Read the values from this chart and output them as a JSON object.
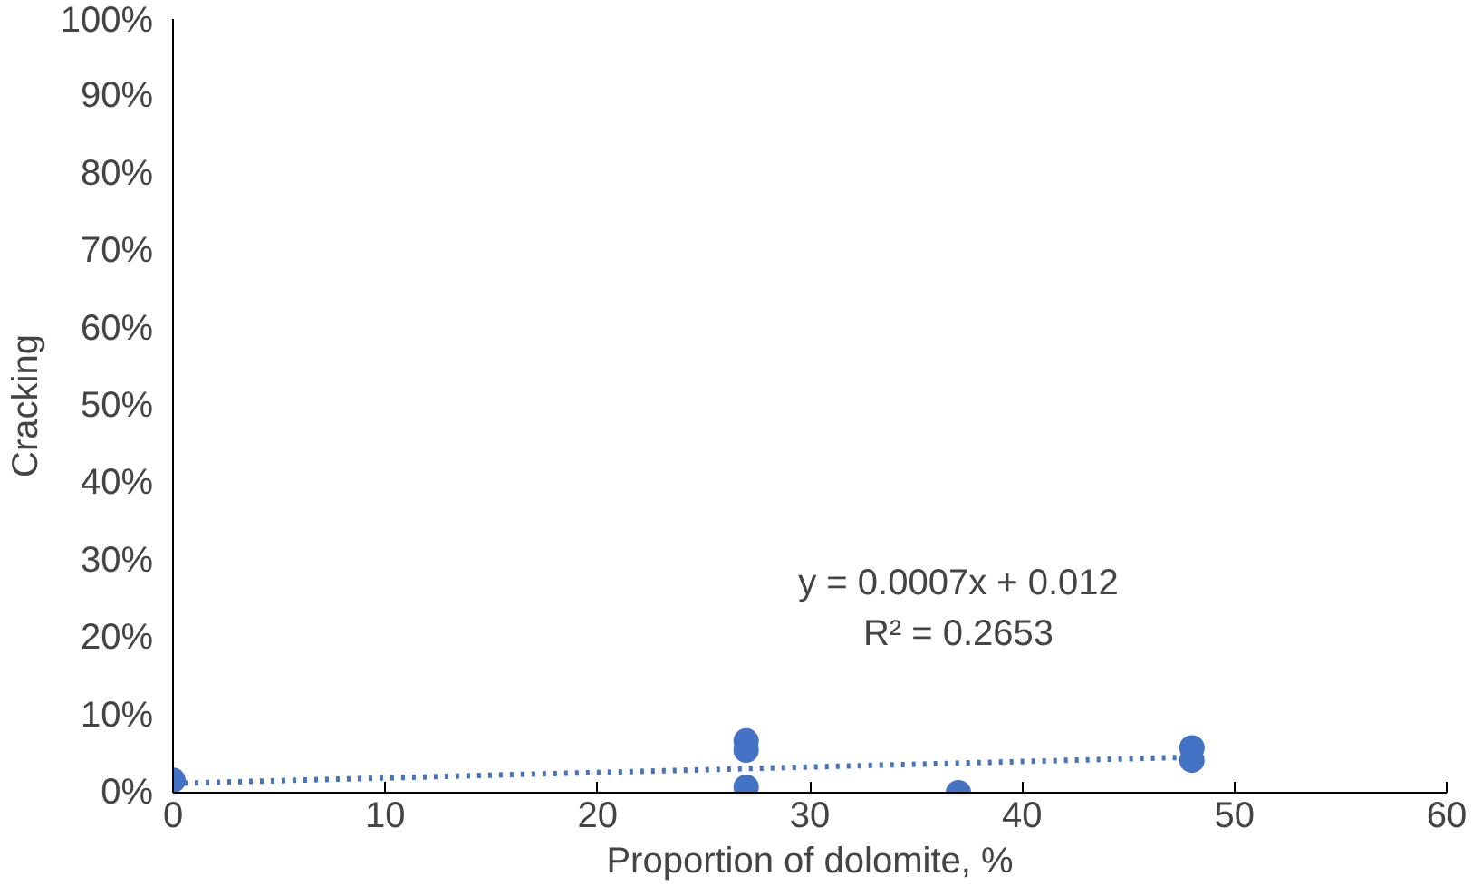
{
  "chart_data": {
    "type": "scatter",
    "xlabel": "Proportion of dolomite, %",
    "ylabel": "Cracking",
    "series": [
      {
        "color": "#4472c4",
        "x": [
          0,
          27,
          27,
          27,
          37,
          48,
          48
        ],
        "values": [
          0.016,
          0.067,
          0.055,
          0.007,
          0.0,
          0.058,
          0.042
        ],
        "marker": "circle"
      },
      {
        "type": "line",
        "color": "#4472c4",
        "x": [
          0,
          48
        ],
        "values": [
          0.012,
          0.046
        ],
        "line_style": "dotted"
      }
    ],
    "annotations": [
      "y = 0.0007x + 0.012",
      "R² = 0.2653"
    ],
    "xlim": [
      0,
      60
    ],
    "xticks": [
      0,
      10,
      20,
      30,
      40,
      50,
      60
    ],
    "ylim": [
      0,
      1
    ],
    "yticks": [
      {
        "value": 0,
        "label": "0%"
      },
      {
        "value": 0.1,
        "label": "10%"
      },
      {
        "value": 0.2,
        "label": "20%"
      },
      {
        "value": 0.3,
        "label": "30%"
      },
      {
        "value": 0.4,
        "label": "40%"
      },
      {
        "value": 0.5,
        "label": "50%"
      },
      {
        "value": 0.6,
        "label": "60%"
      },
      {
        "value": 0.7,
        "label": "70%"
      },
      {
        "value": 0.8,
        "label": "80%"
      },
      {
        "value": 0.9,
        "label": "90%"
      },
      {
        "value": 1,
        "label": "100%"
      }
    ],
    "grid": false
  }
}
